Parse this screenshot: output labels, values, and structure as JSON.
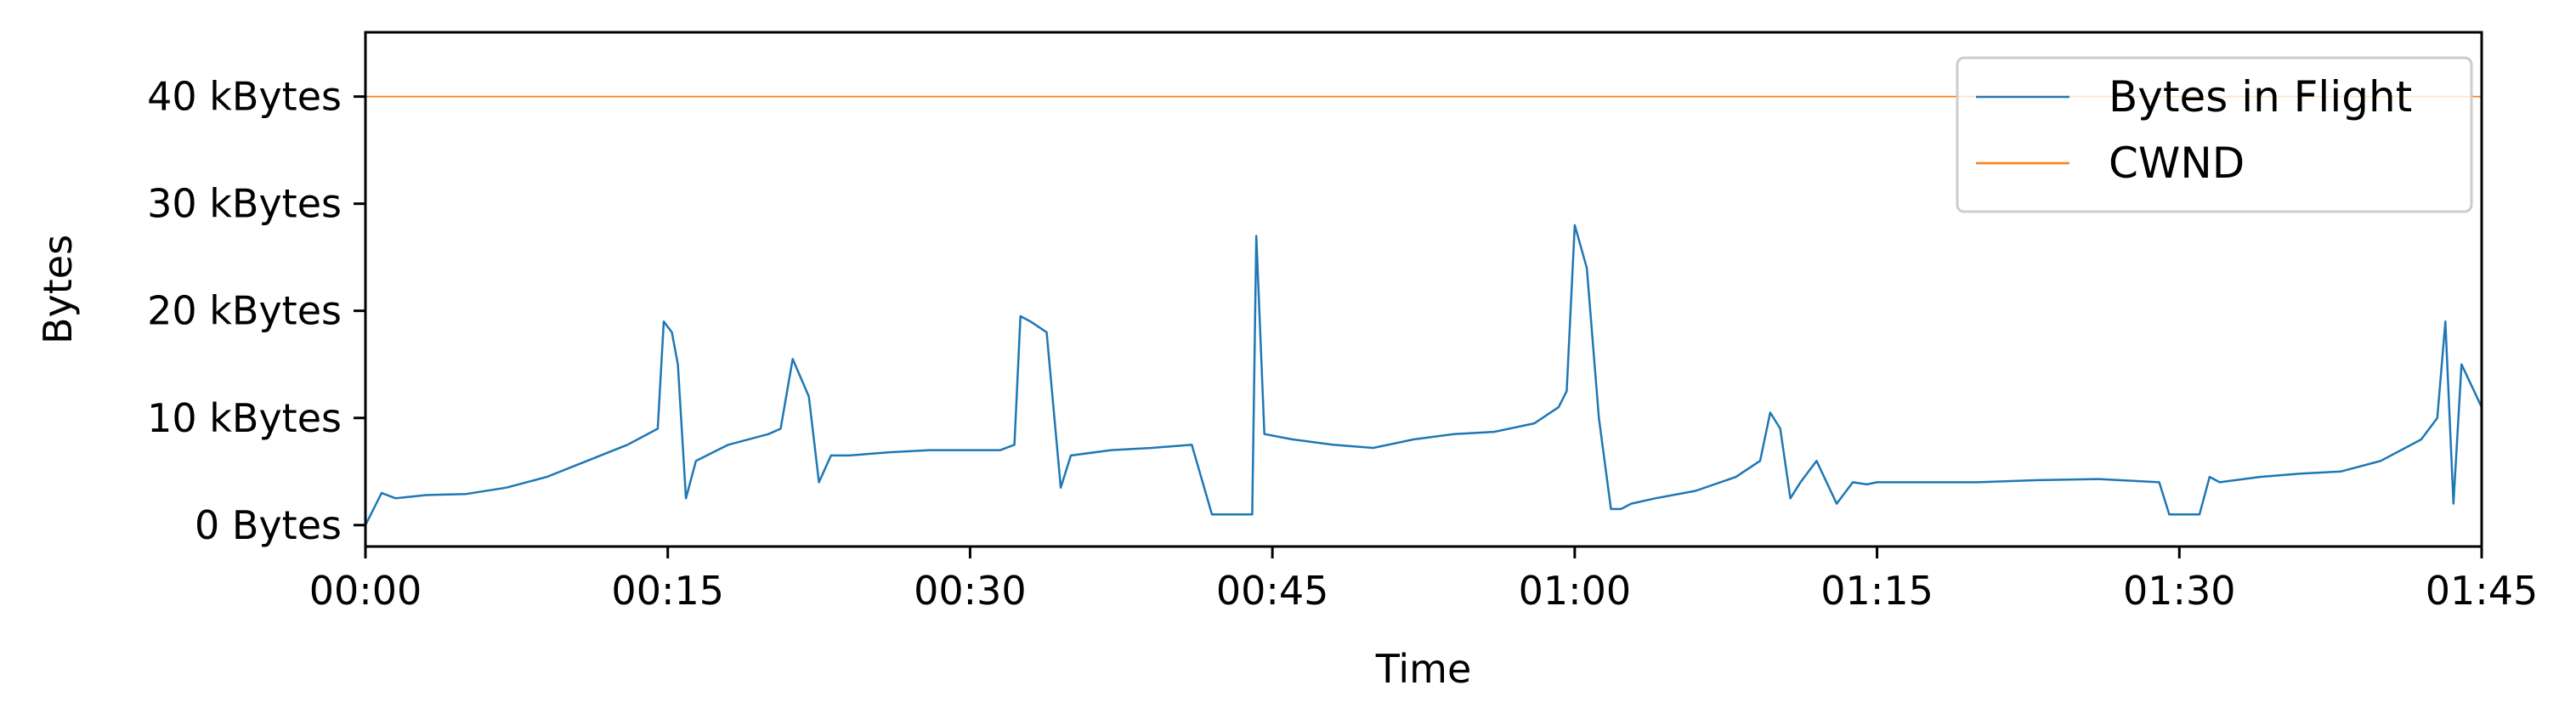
{
  "chart_data": {
    "type": "line",
    "title": "",
    "xlabel": "Time",
    "ylabel": "Bytes",
    "x_unit": "minutes",
    "xlim": [
      0,
      105
    ],
    "ylim": [
      -2000,
      46000
    ],
    "xticks": [
      {
        "value": 0,
        "label": "00:00"
      },
      {
        "value": 15,
        "label": "00:15"
      },
      {
        "value": 30,
        "label": "00:30"
      },
      {
        "value": 45,
        "label": "00:45"
      },
      {
        "value": 60,
        "label": "01:00"
      },
      {
        "value": 75,
        "label": "01:15"
      },
      {
        "value": 90,
        "label": "01:30"
      },
      {
        "value": 105,
        "label": "01:45"
      }
    ],
    "yticks": [
      {
        "value": 0,
        "label": "0 Bytes"
      },
      {
        "value": 10000,
        "label": "10 kBytes"
      },
      {
        "value": 20000,
        "label": "20 kBytes"
      },
      {
        "value": 30000,
        "label": "30 kBytes"
      },
      {
        "value": 40000,
        "label": "40 kBytes"
      }
    ],
    "grid": false,
    "legend_position": "top-right",
    "series": [
      {
        "name": "Bytes in Flight",
        "color": "#1f77b4",
        "x": [
          0,
          0.8,
          1.5,
          3,
          5,
          7,
          9,
          11,
          13,
          14.5,
          14.8,
          15.2,
          15.5,
          15.9,
          16.4,
          18,
          20,
          20.6,
          21.2,
          22,
          22.5,
          23.1,
          24,
          26,
          28,
          30,
          31.5,
          32.2,
          32.5,
          33,
          33.8,
          34.5,
          35,
          37,
          39,
          41,
          42,
          43.5,
          44,
          44.2,
          44.6,
          46,
          48,
          50,
          52,
          54,
          56,
          58,
          59.2,
          59.6,
          60,
          60.6,
          61.2,
          61.8,
          62.3,
          62.8,
          64,
          66,
          68,
          69.2,
          69.7,
          70.2,
          70.7,
          71.2,
          72,
          73,
          73.8,
          74.5,
          75,
          77,
          80,
          83,
          86,
          89,
          89.5,
          90,
          91,
          91.5,
          92,
          94,
          96,
          98,
          100,
          102,
          102.8,
          103.2,
          103.6,
          104,
          105
        ],
        "values": [
          0,
          3000,
          2500,
          2800,
          2900,
          3500,
          4500,
          6000,
          7500,
          9000,
          19000,
          18000,
          15000,
          2500,
          6000,
          7500,
          8500,
          9000,
          15500,
          12000,
          4000,
          6500,
          6500,
          6800,
          7000,
          7000,
          7000,
          7500,
          19500,
          19000,
          18000,
          3500,
          6500,
          7000,
          7200,
          7500,
          1000,
          1000,
          1000,
          27000,
          8500,
          8000,
          7500,
          7200,
          8000,
          8500,
          8700,
          9500,
          11000,
          12500,
          28000,
          24000,
          10000,
          1500,
          1500,
          2000,
          2500,
          3200,
          4500,
          6000,
          10500,
          9000,
          2500,
          4000,
          6000,
          2000,
          4000,
          3800,
          4000,
          4000,
          4000,
          4200,
          4300,
          4000,
          1000,
          1000,
          1000,
          4500,
          4000,
          4500,
          4800,
          5000,
          6000,
          8000,
          10000,
          19000,
          2000,
          15000,
          11000
        ]
      },
      {
        "name": "CWND",
        "color": "#ff7f0e",
        "x": [
          0,
          105
        ],
        "values": [
          40000,
          40000
        ]
      }
    ]
  }
}
